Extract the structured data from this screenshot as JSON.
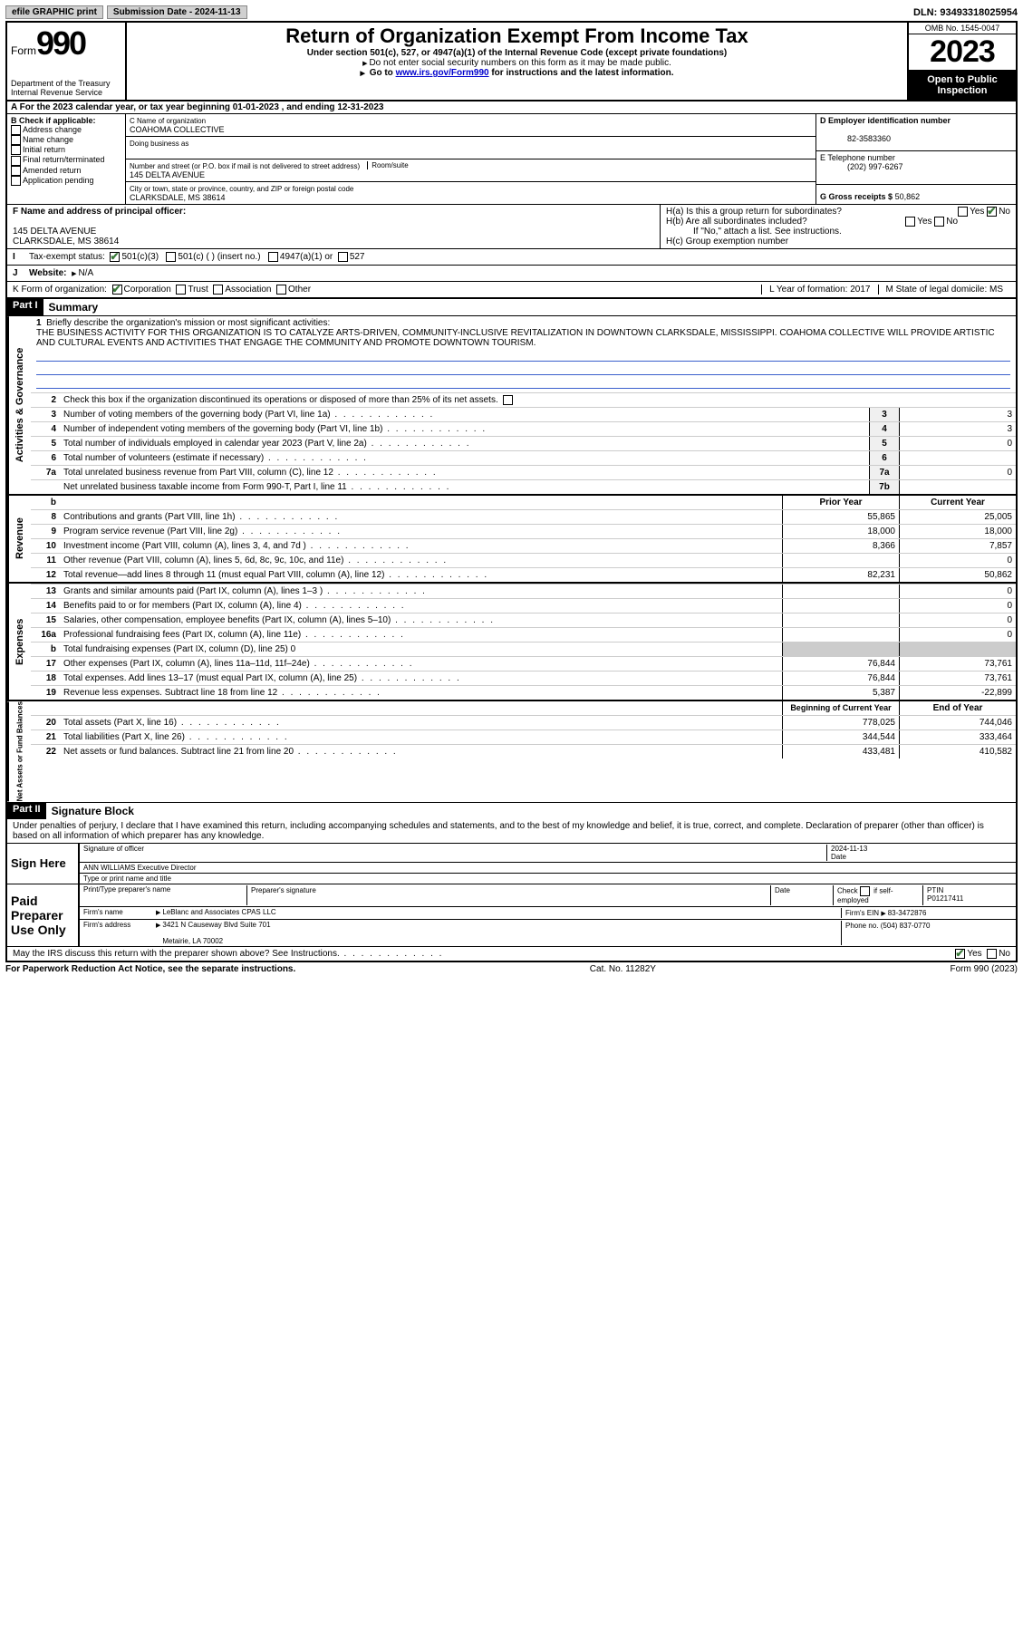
{
  "topbar": {
    "efile": "efile GRAPHIC print",
    "submission": "Submission Date - 2024-11-13",
    "dln": "DLN: 93493318025954"
  },
  "header": {
    "form_label": "Form",
    "form_num": "990",
    "dept": "Department of the Treasury",
    "irs": "Internal Revenue Service",
    "title": "Return of Organization Exempt From Income Tax",
    "sub1": "Under section 501(c), 527, or 4947(a)(1) of the Internal Revenue Code (except private foundations)",
    "sub2": "Do not enter social security numbers on this form as it may be made public.",
    "sub3_pre": "Go to ",
    "sub3_link": "www.irs.gov/Form990",
    "sub3_post": " for instructions and the latest information.",
    "omb": "OMB No. 1545-0047",
    "year": "2023",
    "open": "Open to Public Inspection"
  },
  "rowA": {
    "text": "A For the 2023 calendar year, or tax year beginning 01-01-2023   , and ending 12-31-2023"
  },
  "colB": {
    "hdr": "B Check if applicable:",
    "opts": [
      "Address change",
      "Name change",
      "Initial return",
      "Final return/terminated",
      "Amended return",
      "Application pending"
    ]
  },
  "colC": {
    "name_lbl": "C Name of organization",
    "name": "COAHOMA COLLECTIVE",
    "dba_lbl": "Doing business as",
    "addr_lbl": "Number and street (or P.O. box if mail is not delivered to street address)",
    "room_lbl": "Room/suite",
    "addr": "145 DELTA AVENUE",
    "city_lbl": "City or town, state or province, country, and ZIP or foreign postal code",
    "city": "CLARKSDALE, MS  38614"
  },
  "colD": {
    "ein_lbl": "D Employer identification number",
    "ein": "82-3583360",
    "tel_lbl": "E Telephone number",
    "tel": "(202) 997-6267",
    "gross_lbl": "G Gross receipts $",
    "gross": "50,862"
  },
  "rowF": {
    "lbl": "F Name and address of principal officer:",
    "addr1": "145 DELTA AVENUE",
    "addr2": "CLARKSDALE, MS  38614",
    "ha": "H(a)  Is this a group return for subordinates?",
    "hb": "H(b)  Are all subordinates included?",
    "hb_note": "If \"No,\" attach a list. See instructions.",
    "hc": "H(c)  Group exemption number",
    "yes": "Yes",
    "no": "No"
  },
  "rowI": {
    "lbl": "Tax-exempt status:",
    "o1": "501(c)(3)",
    "o2": "501(c) (   ) (insert no.)",
    "o3": "4947(a)(1) or",
    "o4": "527"
  },
  "rowJ": {
    "lbl": "Website:",
    "val": "N/A"
  },
  "rowK": {
    "lbl": "K Form of organization:",
    "o1": "Corporation",
    "o2": "Trust",
    "o3": "Association",
    "o4": "Other",
    "L": "L Year of formation: 2017",
    "M": "M State of legal domicile: MS"
  },
  "part1": {
    "hdr": "Part I",
    "title": "Summary",
    "side1": "Activities & Governance",
    "side2": "Revenue",
    "side3": "Expenses",
    "side4": "Net Assets or Fund Balances",
    "l1_lbl": "Briefly describe the organization's mission or most significant activities:",
    "l1": "THE BUSINESS ACTIVITY FOR THIS ORGANIZATION IS TO CATALYZE ARTS-DRIVEN, COMMUNITY-INCLUSIVE REVITALIZATION IN DOWNTOWN CLARKSDALE, MISSISSIPPI. COAHOMA COLLECTIVE WILL PROVIDE ARTISTIC AND CULTURAL EVENTS AND ACTIVITIES THAT ENGAGE THE COMMUNITY AND PROMOTE DOWNTOWN TOURISM.",
    "l2": "Check this box       if the organization discontinued its operations or disposed of more than 25% of its net assets.",
    "lines_gov": [
      {
        "n": "3",
        "t": "Number of voting members of the governing body (Part VI, line 1a)",
        "box": "3",
        "v": "3"
      },
      {
        "n": "4",
        "t": "Number of independent voting members of the governing body (Part VI, line 1b)",
        "box": "4",
        "v": "3"
      },
      {
        "n": "5",
        "t": "Total number of individuals employed in calendar year 2023 (Part V, line 2a)",
        "box": "5",
        "v": "0"
      },
      {
        "n": "6",
        "t": "Total number of volunteers (estimate if necessary)",
        "box": "6",
        "v": ""
      },
      {
        "n": "7a",
        "t": "Total unrelated business revenue from Part VIII, column (C), line 12",
        "box": "7a",
        "v": "0"
      },
      {
        "n": "",
        "t": "Net unrelated business taxable income from Form 990-T, Part I, line 11",
        "box": "7b",
        "v": ""
      }
    ],
    "hdr_prior": "Prior Year",
    "hdr_current": "Current Year",
    "lines_rev": [
      {
        "n": "8",
        "t": "Contributions and grants (Part VIII, line 1h)",
        "p": "55,865",
        "c": "25,005"
      },
      {
        "n": "9",
        "t": "Program service revenue (Part VIII, line 2g)",
        "p": "18,000",
        "c": "18,000"
      },
      {
        "n": "10",
        "t": "Investment income (Part VIII, column (A), lines 3, 4, and 7d )",
        "p": "8,366",
        "c": "7,857"
      },
      {
        "n": "11",
        "t": "Other revenue (Part VIII, column (A), lines 5, 6d, 8c, 9c, 10c, and 11e)",
        "p": "",
        "c": "0"
      },
      {
        "n": "12",
        "t": "Total revenue—add lines 8 through 11 (must equal Part VIII, column (A), line 12)",
        "p": "82,231",
        "c": "50,862"
      }
    ],
    "lines_exp": [
      {
        "n": "13",
        "t": "Grants and similar amounts paid (Part IX, column (A), lines 1–3 )",
        "p": "",
        "c": "0"
      },
      {
        "n": "14",
        "t": "Benefits paid to or for members (Part IX, column (A), line 4)",
        "p": "",
        "c": "0"
      },
      {
        "n": "15",
        "t": "Salaries, other compensation, employee benefits (Part IX, column (A), lines 5–10)",
        "p": "",
        "c": "0"
      },
      {
        "n": "16a",
        "t": "Professional fundraising fees (Part IX, column (A), line 11e)",
        "p": "",
        "c": "0"
      },
      {
        "n": "b",
        "t": "Total fundraising expenses (Part IX, column (D), line 25) 0",
        "p": null,
        "c": null
      },
      {
        "n": "17",
        "t": "Other expenses (Part IX, column (A), lines 11a–11d, 11f–24e)",
        "p": "76,844",
        "c": "73,761"
      },
      {
        "n": "18",
        "t": "Total expenses. Add lines 13–17 (must equal Part IX, column (A), line 25)",
        "p": "76,844",
        "c": "73,761"
      },
      {
        "n": "19",
        "t": "Revenue less expenses. Subtract line 18 from line 12",
        "p": "5,387",
        "c": "-22,899"
      }
    ],
    "hdr_beg": "Beginning of Current Year",
    "hdr_end": "End of Year",
    "lines_net": [
      {
        "n": "20",
        "t": "Total assets (Part X, line 16)",
        "p": "778,025",
        "c": "744,046"
      },
      {
        "n": "21",
        "t": "Total liabilities (Part X, line 26)",
        "p": "344,544",
        "c": "333,464"
      },
      {
        "n": "22",
        "t": "Net assets or fund balances. Subtract line 21 from line 20",
        "p": "433,481",
        "c": "410,582"
      }
    ]
  },
  "part2": {
    "hdr": "Part II",
    "title": "Signature Block",
    "decl": "Under penalties of perjury, I declare that I have examined this return, including accompanying schedules and statements, and to the best of my knowledge and belief, it is true, correct, and complete. Declaration of preparer (other than officer) is based on all information of which preparer has any knowledge."
  },
  "sign": {
    "here": "Sign Here",
    "sig_lbl": "Signature of officer",
    "date_lbl": "Date",
    "date": "2024-11-13",
    "name": "ANN WILLIAMS Executive Director",
    "name_lbl": "Type or print name and title"
  },
  "prep": {
    "label": "Paid Preparer Use Only",
    "col1": "Print/Type preparer's name",
    "col2": "Preparer's signature",
    "col3": "Date",
    "col4_pre": "Check",
    "col4_post": "if self-employed",
    "col5": "PTIN",
    "ptin": "P01217411",
    "firm_name_lbl": "Firm's name",
    "firm_name": "LeBlanc and Associates CPAS LLC",
    "firm_ein_lbl": "Firm's EIN",
    "firm_ein": "83-3472876",
    "firm_addr_lbl": "Firm's address",
    "firm_addr1": "3421 N Causeway Blvd Suite 701",
    "firm_addr2": "Metairie, LA  70002",
    "phone_lbl": "Phone no.",
    "phone": "(504) 837-0770",
    "discuss": "May the IRS discuss this return with the preparer shown above? See Instructions."
  },
  "footer": {
    "left": "For Paperwork Reduction Act Notice, see the separate instructions.",
    "center": "Cat. No. 11282Y",
    "right": "Form 990 (2023)"
  }
}
